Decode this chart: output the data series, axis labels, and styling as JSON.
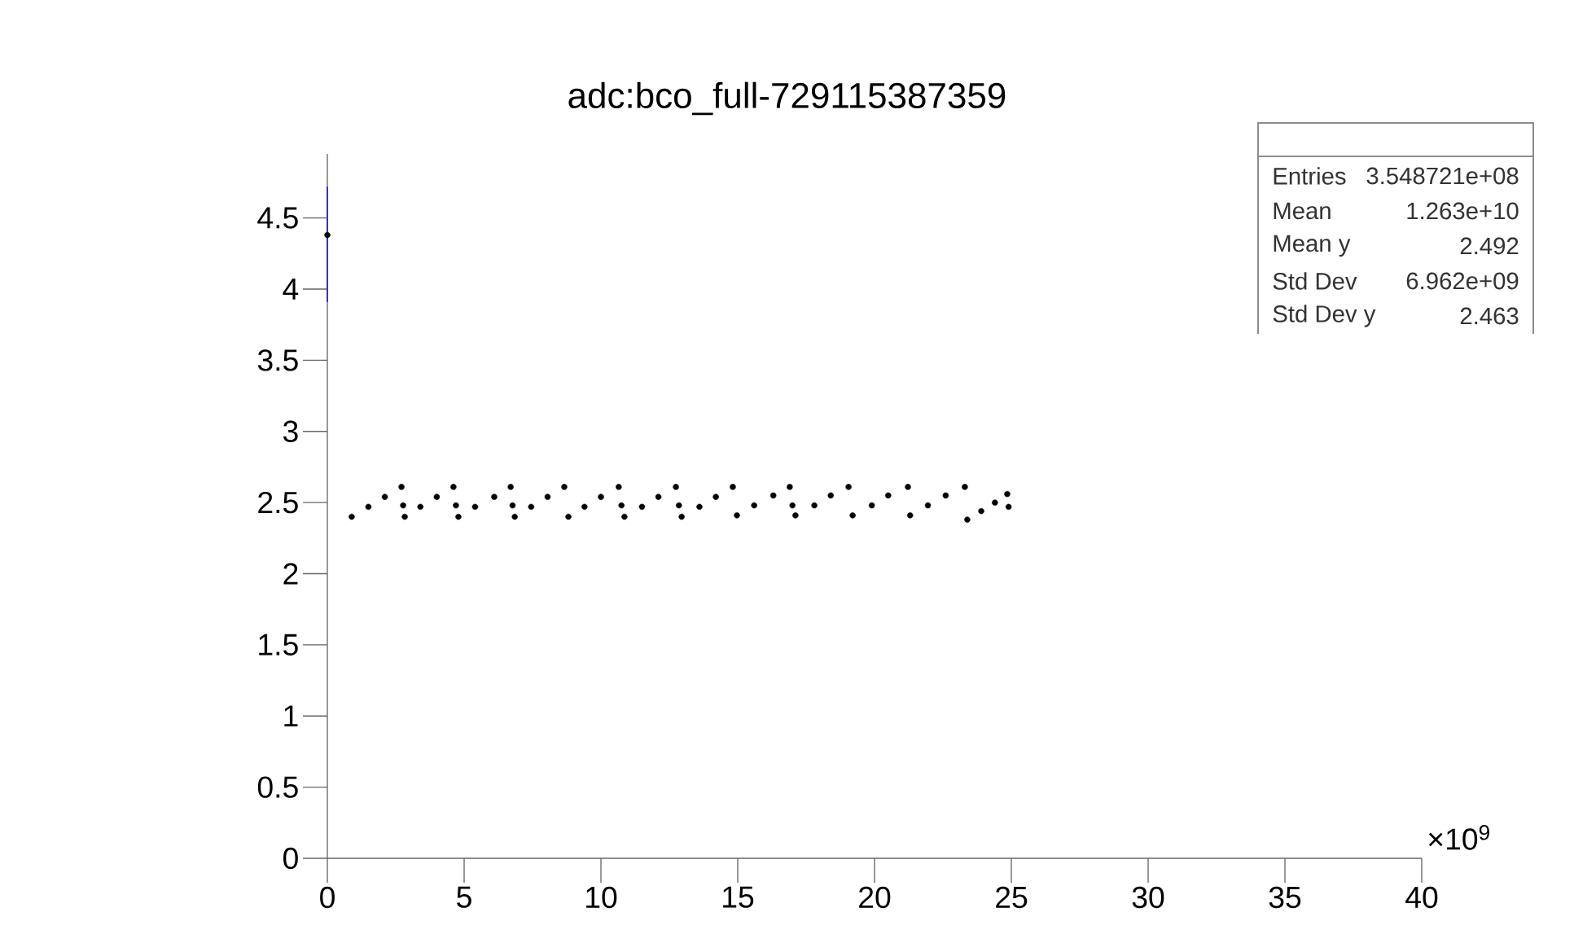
{
  "chart_data": {
    "type": "scatter",
    "title": "adc:bco_full-729115387359",
    "xlim": [
      0,
      40
    ],
    "ylim": [
      0,
      4.95
    ],
    "xticks": [
      0,
      5,
      10,
      15,
      20,
      25,
      30,
      35,
      40
    ],
    "yticks": [
      0,
      0.5,
      1,
      1.5,
      2,
      2.5,
      3,
      3.5,
      4,
      4.5
    ],
    "marker": "circle",
    "series": [
      {
        "type": "line",
        "color": "#3333cc",
        "marker": "none",
        "x": [
          0,
          0
        ],
        "values": [
          3.91,
          4.72
        ]
      },
      {
        "color": "#000000",
        "x": [
          0,
          0.89,
          1.5,
          2.1,
          2.71,
          2.77,
          2.83,
          3.4,
          4.0,
          4.61,
          4.7,
          4.79,
          5.4,
          6.1,
          6.7,
          6.77,
          6.85,
          7.45,
          8.05,
          8.66,
          8.81,
          9.4,
          10.0,
          10.65,
          10.75,
          10.86,
          11.5,
          12.1,
          12.74,
          12.85,
          12.95,
          13.6,
          14.2,
          14.82,
          14.97,
          15.6,
          16.3,
          16.9,
          17.0,
          17.11,
          17.8,
          18.4,
          19.05,
          19.2,
          19.9,
          20.5,
          21.22,
          21.3,
          21.95,
          22.6,
          23.3,
          23.39,
          23.9,
          24.4,
          24.85,
          24.9
        ],
        "values": [
          4.38,
          2.4,
          2.47,
          2.54,
          2.61,
          2.48,
          2.4,
          2.47,
          2.54,
          2.61,
          2.48,
          2.4,
          2.47,
          2.54,
          2.61,
          2.48,
          2.4,
          2.47,
          2.54,
          2.61,
          2.4,
          2.47,
          2.54,
          2.61,
          2.48,
          2.4,
          2.47,
          2.54,
          2.61,
          2.48,
          2.4,
          2.47,
          2.54,
          2.61,
          2.41,
          2.48,
          2.55,
          2.61,
          2.48,
          2.41,
          2.48,
          2.55,
          2.61,
          2.41,
          2.48,
          2.55,
          2.61,
          2.41,
          2.48,
          2.55,
          2.61,
          2.38,
          2.44,
          2.5,
          2.56,
          2.47
        ]
      }
    ],
    "annotations": [
      "×10$^{9}$",
      "Entries",
      "3.548721e+08",
      "Mean",
      "1.263e+10",
      "Mean y",
      "2.492",
      "Std Dev",
      "6.962e+09",
      "Std Dev y",
      "2.463"
    ]
  }
}
